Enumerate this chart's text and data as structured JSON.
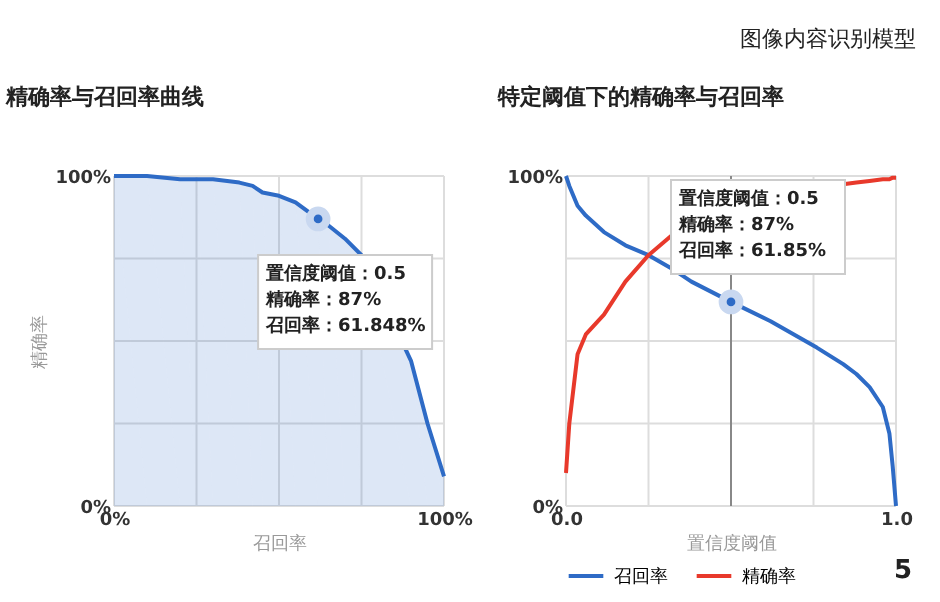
{
  "chart_data": [
    {
      "type": "area",
      "title": "精确率与召回率曲线",
      "xlabel": "召回率",
      "ylabel": "精确率",
      "x": [
        0,
        10,
        20,
        25,
        30,
        38,
        42,
        45,
        50,
        55,
        61.848,
        65,
        70,
        75,
        90,
        95,
        100
      ],
      "series": [
        {
          "color": "#2e6bc6",
          "values": [
            100,
            100,
            99,
            99,
            99,
            98,
            97,
            95,
            94,
            92,
            87,
            85,
            81,
            76,
            44,
            25,
            9
          ]
        }
      ],
      "xlim": [
        0,
        100
      ],
      "ylim": [
        0,
        100
      ],
      "xticks": [
        {
          "value": 0,
          "label": "0%"
        },
        {
          "value": 25,
          "label": null
        },
        {
          "value": 50,
          "label": null
        },
        {
          "value": 75,
          "label": null
        },
        {
          "value": 100,
          "label": "100%"
        }
      ],
      "yticks": [
        {
          "value": 0,
          "label": "0%"
        },
        {
          "value": 25,
          "label": null
        },
        {
          "value": 50,
          "label": null
        },
        {
          "value": 75,
          "label": null
        },
        {
          "value": 100,
          "label": "100%"
        }
      ],
      "grid": true,
      "annotations": [
        "图像内容识别模型",
        {
          "text": "置信度阈值：0.5\n精确率：87%\n召回率：61.848%",
          "x": 61.848,
          "y": 87
        }
      ]
    },
    {
      "type": "line",
      "title": "特定阈值下的精确率与召回率",
      "xlabel": "置信度阈值",
      "x": [
        0,
        0.01,
        0.035,
        0.06,
        0.115,
        0.18,
        0.25,
        0.32,
        0.38,
        0.5,
        0.62,
        0.76,
        0.84,
        0.88,
        0.92,
        0.96,
        0.98,
        0.99,
        1.0
      ],
      "series": [
        {
          "name": "召回率",
          "color": "#2e6bc6",
          "values": [
            100,
            97,
            91,
            88,
            83,
            79,
            76,
            72,
            68,
            61.85,
            56,
            48,
            43,
            40,
            36,
            30,
            22,
            12,
            0
          ]
        },
        {
          "name": "精确率",
          "color": "#e8392b",
          "values": [
            10,
            25,
            46,
            52,
            58,
            68,
            76,
            82,
            null,
            null,
            null,
            null,
            97.5,
            98,
            98.5,
            99,
            99,
            99.5,
            99.5
          ]
        }
      ],
      "xlim": [
        0,
        1
      ],
      "ylim": [
        0,
        100
      ],
      "xticks": [
        {
          "value": 0,
          "label": "0.0"
        },
        {
          "value": 0.25,
          "label": null
        },
        {
          "value": 0.5,
          "label": null
        },
        {
          "value": 0.75,
          "label": null
        },
        {
          "value": 1,
          "label": "1.0"
        }
      ],
      "yticks": [
        {
          "value": 0,
          "label": "0%"
        },
        {
          "value": 25,
          "label": null
        },
        {
          "value": 50,
          "label": null
        },
        {
          "value": 75,
          "label": null
        },
        {
          "value": 100,
          "label": "100%"
        }
      ],
      "grid": true,
      "legend": "bottom",
      "ref_lines": [
        {
          "axis": "x",
          "value": 0.5,
          "color": "#888888"
        }
      ],
      "annotations": [
        {
          "text": "置信度阈值：0.5\n精确率：87%\n召回率：61.85%",
          "x": 0.5,
          "y": 61.85
        },
        "5"
      ]
    }
  ]
}
